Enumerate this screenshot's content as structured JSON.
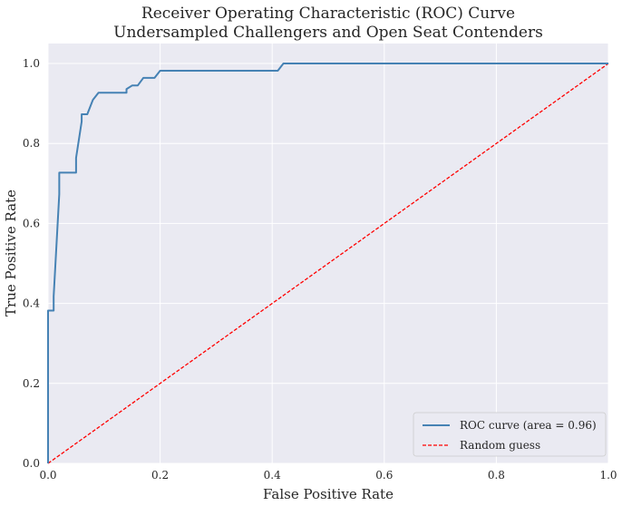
{
  "chart_data": {
    "type": "line",
    "title": "Receiver Operating Characteristic (ROC) Curve",
    "subtitle": "Undersampled Challengers and Open Seat Contenders",
    "xlabel": "False Positive Rate",
    "ylabel": "True Positive Rate",
    "xlim": [
      0.0,
      1.0
    ],
    "ylim": [
      0.0,
      1.05
    ],
    "xticks": [
      "0.0",
      "0.2",
      "0.4",
      "0.6",
      "0.8",
      "1.0"
    ],
    "yticks": [
      "0.0",
      "0.2",
      "0.4",
      "0.6",
      "0.8",
      "1.0"
    ],
    "grid": true,
    "legend_position": "lower-right",
    "series": [
      {
        "name": "ROC curve (area = 0.96)",
        "color": "#4682b4",
        "style": "solid",
        "x": [
          0.0,
          0.0,
          0.01,
          0.01,
          0.02,
          0.02,
          0.05,
          0.05,
          0.06,
          0.06,
          0.07,
          0.07,
          0.08,
          0.09,
          0.09,
          0.14,
          0.14,
          0.15,
          0.15,
          0.16,
          0.17,
          0.17,
          0.19,
          0.19,
          0.2,
          0.2,
          0.41,
          0.41,
          0.42,
          0.42,
          1.0
        ],
        "y": [
          0.0,
          0.382,
          0.382,
          0.418,
          0.673,
          0.727,
          0.727,
          0.764,
          0.855,
          0.873,
          0.873,
          0.873,
          0.909,
          0.927,
          0.927,
          0.927,
          0.936,
          0.945,
          0.945,
          0.945,
          0.964,
          0.964,
          0.964,
          0.964,
          0.982,
          0.982,
          0.982,
          0.982,
          1.0,
          1.0,
          1.0
        ]
      },
      {
        "name": "Random guess",
        "color": "#ff0000",
        "style": "dashed",
        "x": [
          0.0,
          1.0
        ],
        "y": [
          0.0,
          1.0
        ]
      }
    ]
  }
}
